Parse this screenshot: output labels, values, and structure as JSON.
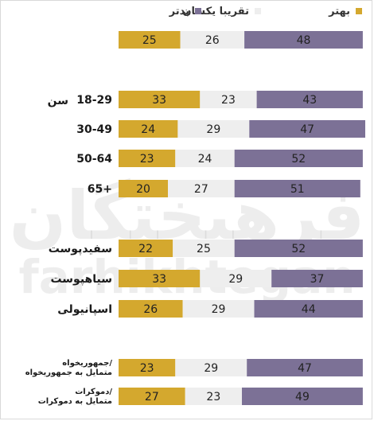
{
  "legend": [
    {
      "label": "بهتر",
      "color": "#d4a82e"
    },
    {
      "label": "تقریبا یکسان",
      "color": "#eeeeee"
    },
    {
      "label": "بدتر",
      "color": "#7c7196"
    }
  ],
  "watermark": {
    "line1": "فرهیختگان",
    "line2": "farhikhtegan"
  },
  "chart_data": {
    "type": "bar",
    "stacked": true,
    "orientation": "horizontal",
    "series_names": [
      "بهتر",
      "تقریبا یکسان",
      "بدتر"
    ],
    "colors": [
      "#d4a82e",
      "#eeeeee",
      "#7c7196"
    ],
    "groups": [
      {
        "label": "",
        "rows": [
          {
            "label": "",
            "better": 25,
            "same": 26,
            "worse": 48
          }
        ]
      },
      {
        "label": "سن",
        "rows": [
          {
            "label": "18-29",
            "better": 33,
            "same": 23,
            "worse": 43
          },
          {
            "label": "30-49",
            "better": 24,
            "same": 29,
            "worse": 47
          },
          {
            "label": "50-64",
            "better": 23,
            "same": 24,
            "worse": 52
          },
          {
            "label": "65+",
            "better": 20,
            "same": 27,
            "worse": 51
          }
        ]
      },
      {
        "label": "",
        "rows": [
          {
            "label": "سفیدپوست",
            "better": 22,
            "same": 25,
            "worse": 52
          },
          {
            "label": "سیاهپوست",
            "better": 33,
            "same": 29,
            "worse": 37
          },
          {
            "label": "اسپانیولی",
            "better": 26,
            "same": 29,
            "worse": 44
          }
        ]
      },
      {
        "label": "",
        "rows": [
          {
            "label": "جمهوریخواه/ متمایل به جمهوریخواه",
            "better": 23,
            "same": 29,
            "worse": 47
          },
          {
            "label": "دموکرات/ متمایل به دموکرات",
            "better": 27,
            "same": 23,
            "worse": 49
          }
        ]
      }
    ]
  }
}
